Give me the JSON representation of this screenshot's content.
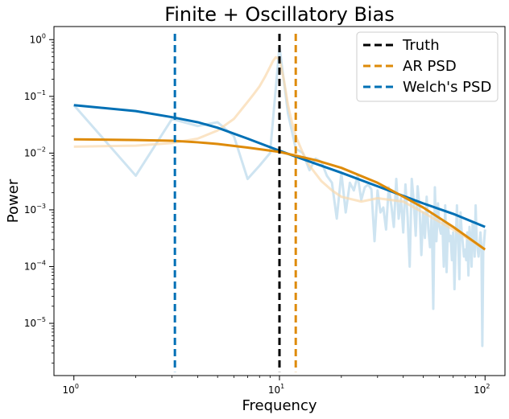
{
  "chart_data": {
    "type": "line",
    "title": "Finite + Oscillatory Bias",
    "xlabel": "Frequency",
    "ylabel": "Power",
    "xscale": "log",
    "yscale": "log",
    "xlim": [
      0.8,
      125
    ],
    "ylim": [
      1.2e-06,
      1.7
    ],
    "grid": false,
    "legend_position": "top-right",
    "x_ticks": [
      {
        "value": 1,
        "base": "10",
        "exp": "0"
      },
      {
        "value": 10,
        "base": "10",
        "exp": "1"
      },
      {
        "value": 100,
        "base": "10",
        "exp": "2"
      }
    ],
    "y_ticks": [
      {
        "value": 1e-05,
        "base": "10",
        "exp": "−5"
      },
      {
        "value": 0.0001,
        "base": "10",
        "exp": "−4"
      },
      {
        "value": 0.001,
        "base": "10",
        "exp": "−3"
      },
      {
        "value": 0.01,
        "base": "10",
        "exp": "−2"
      },
      {
        "value": 0.1,
        "base": "10",
        "exp": "−1"
      },
      {
        "value": 1,
        "base": "10",
        "exp": "0"
      }
    ],
    "background_series": [
      {
        "color": "#a6cde6",
        "opacity": 0.55,
        "x": [
          1,
          2,
          3,
          4,
          5,
          6,
          7,
          8,
          9,
          10,
          11,
          12,
          13,
          14,
          15,
          16,
          17,
          18,
          19,
          20,
          21,
          22,
          23,
          24,
          25,
          26,
          27,
          28,
          29,
          30,
          31,
          32,
          33,
          34,
          35,
          36,
          37,
          38,
          39,
          40,
          41,
          42,
          43,
          44,
          45,
          46,
          47,
          48,
          49,
          50,
          51,
          52,
          53,
          54,
          55,
          56,
          57,
          58,
          59,
          60,
          61,
          62,
          63,
          64,
          65,
          66,
          67,
          68,
          69,
          70,
          71,
          72,
          73,
          74,
          75,
          76,
          77,
          78,
          79,
          80,
          81,
          82,
          83,
          84,
          85,
          86,
          87,
          88,
          89,
          90,
          91,
          92,
          93,
          94,
          95,
          96,
          97,
          98,
          99,
          100
        ],
        "y": [
          0.07,
          0.004,
          0.04,
          0.03,
          0.035,
          0.02,
          0.0035,
          0.006,
          0.01,
          0.75,
          0.05,
          0.012,
          0.01,
          0.005,
          0.008,
          0.007,
          0.004,
          0.003,
          0.0007,
          0.0045,
          0.0009,
          0.003,
          0.0022,
          0.004,
          0.0015,
          0.0025,
          0.0028,
          0.0023,
          0.00028,
          0.0022,
          0.0009,
          0.0011,
          0.00045,
          0.0025,
          0.0012,
          0.0005,
          0.0035,
          0.0007,
          0.0016,
          0.0004,
          0.0028,
          0.00075,
          0.0001,
          0.0035,
          0.0014,
          0.00035,
          0.0026,
          0.0011,
          0.00016,
          0.0009,
          0.00032,
          0.0017,
          0.00045,
          0.00022,
          0.00085,
          1.8e-05,
          0.0025,
          0.00028,
          0.0013,
          0.0005,
          0.00038,
          0.0006,
          0.0001,
          0.0012,
          8e-05,
          0.00055,
          0.00028,
          0.00035,
          0.00013,
          0.0004,
          4e-05,
          0.00025,
          0.0012,
          0.0003,
          6e-05,
          0.0009,
          0.0004,
          0.00025,
          0.00015,
          0.0002,
          0.00013,
          0.0004,
          7e-05,
          0.0005,
          0.0003,
          0.0001,
          0.0006,
          0.0004,
          0.00015,
          0.0012,
          0.0003,
          0.0002,
          0.00015,
          0.00025,
          0.0004,
          0.00022,
          4e-06,
          0.00018,
          0.00028,
          0.00045
        ]
      },
      {
        "color": "#f9d8ad",
        "opacity": 0.7,
        "x": [
          1,
          2,
          3,
          4,
          5,
          6,
          7,
          7.5,
          8,
          8.5,
          9,
          9.3,
          9.6,
          10,
          10.5,
          11,
          11.5,
          12,
          13,
          14,
          16,
          18,
          20,
          25,
          30,
          40,
          50,
          70,
          100
        ],
        "y": [
          0.013,
          0.0135,
          0.015,
          0.018,
          0.025,
          0.04,
          0.08,
          0.11,
          0.15,
          0.22,
          0.33,
          0.42,
          0.49,
          0.45,
          0.2,
          0.07,
          0.035,
          0.02,
          0.01,
          0.006,
          0.0032,
          0.0022,
          0.0017,
          0.0014,
          0.0016,
          0.0014,
          0.0009,
          0.00045,
          0.0002
        ]
      }
    ],
    "series": [
      {
        "name": "Welch's PSD",
        "color": "#0070b5",
        "x": [
          1,
          2,
          3,
          4,
          5,
          7,
          10,
          15,
          20,
          30,
          50,
          70,
          100
        ],
        "y": [
          0.07,
          0.055,
          0.043,
          0.035,
          0.028,
          0.018,
          0.011,
          0.0065,
          0.0045,
          0.0026,
          0.0013,
          0.00085,
          0.0005
        ]
      },
      {
        "name": "AR PSD",
        "color": "#de8b0a",
        "x": [
          1,
          2,
          3,
          4,
          5,
          7,
          10,
          15,
          20,
          30,
          50,
          70,
          100
        ],
        "y": [
          0.0175,
          0.017,
          0.0165,
          0.0155,
          0.0145,
          0.0125,
          0.0105,
          0.0075,
          0.0055,
          0.003,
          0.0011,
          0.0005,
          0.0002
        ]
      }
    ],
    "vlines": [
      {
        "name": "Truth",
        "x": 10,
        "color": "#000000"
      },
      {
        "name": "AR PSD",
        "x": 12,
        "color": "#de8b0a"
      },
      {
        "name": "Welch's PSD",
        "x": 3.1,
        "color": "#0070b5"
      }
    ],
    "legend": [
      {
        "label": "Truth",
        "color": "#000000"
      },
      {
        "label": "AR PSD",
        "color": "#de8b0a"
      },
      {
        "label": "Welch's PSD",
        "color": "#0070b5"
      }
    ]
  }
}
